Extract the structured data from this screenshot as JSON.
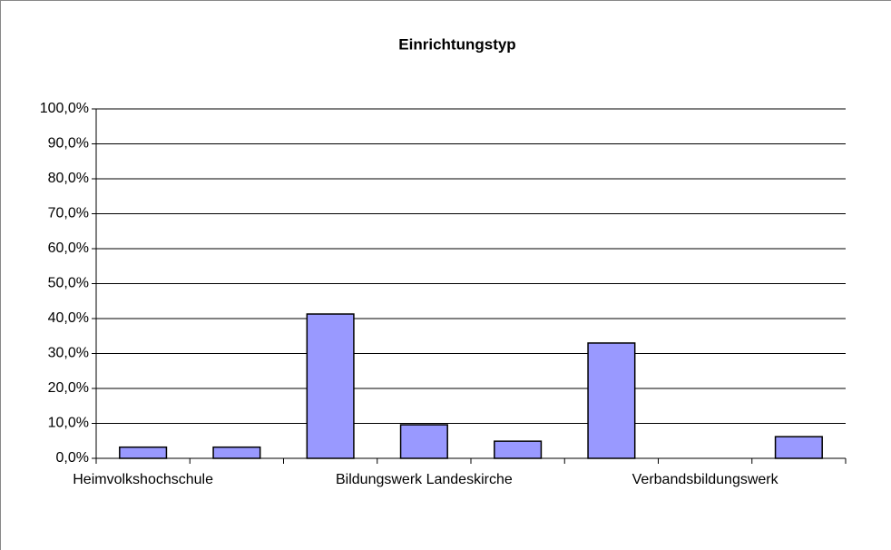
{
  "chart_data": {
    "type": "bar",
    "title": "Einrichtungstyp",
    "categories": [
      "Heimvolkshochschule",
      null,
      null,
      "Bildungswerk Landeskirche",
      null,
      null,
      "Verbandsbildungswerk",
      null
    ],
    "values": [
      3.2,
      3.2,
      41.3,
      9.6,
      4.9,
      33.0,
      0,
      6.2
    ],
    "color": "#9999ff",
    "ylim": [
      0,
      100
    ],
    "yticks": [
      {
        "value": 0,
        "label": "0,0%"
      },
      {
        "value": 10,
        "label": "10,0%"
      },
      {
        "value": 20,
        "label": "20,0%"
      },
      {
        "value": 30,
        "label": "30,0%"
      },
      {
        "value": 40,
        "label": "40,0%"
      },
      {
        "value": 50,
        "label": "50,0%"
      },
      {
        "value": 60,
        "label": "60,0%"
      },
      {
        "value": 70,
        "label": "70,0%"
      },
      {
        "value": 80,
        "label": "80,0%"
      },
      {
        "value": 90,
        "label": "90,0%"
      },
      {
        "value": 100,
        "label": "100,0%"
      }
    ],
    "grid": true
  }
}
